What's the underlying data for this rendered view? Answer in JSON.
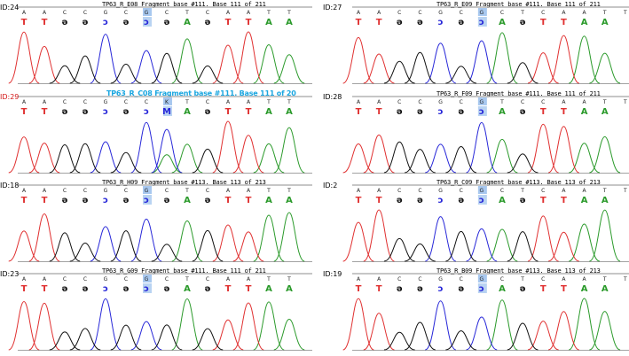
{
  "colors": {
    "A": "#2b9a2b",
    "T": "#e03030",
    "C": "#2727d8",
    "G": "#111111",
    "highlight": "#a8c8ef",
    "red_label": "#d41818",
    "blue_title": "#19a6e0"
  },
  "panels": [
    {
      "id": "ID:24",
      "id_color": "black",
      "title": "TP63_R_E08 Fragment base #111. Base 111 of 211",
      "title_style": "normal",
      "ref": [
        "A",
        "A",
        "C",
        "C",
        "G",
        "C",
        "G",
        "C",
        "T",
        "C",
        "A",
        "A",
        "T",
        "T"
      ],
      "calls": [
        "T",
        "T",
        "G",
        "G",
        "C",
        "G",
        "C",
        "G",
        "A",
        "G",
        "T",
        "T",
        "A",
        "A"
      ],
      "highlight": 6
    },
    {
      "id": "ID:27",
      "id_color": "black",
      "title": "TP63_R_E09 Fragment base #111. Base 111 of 211",
      "title_style": "normal",
      "ref": [
        "A",
        "A",
        "C",
        "C",
        "G",
        "C",
        "G",
        "C",
        "T",
        "C",
        "A",
        "A",
        "T",
        "T"
      ],
      "calls": [
        "T",
        "T",
        "G",
        "G",
        "C",
        "G",
        "C",
        "A",
        "G",
        "T",
        "T",
        "A",
        "A"
      ],
      "highlight": 6
    },
    {
      "id": "ID:29",
      "id_color": "red",
      "title": "TP63_R_C08 Fragment base #111. Base 111 of 20",
      "title_style": "blue",
      "ref": [
        "A",
        "A",
        "C",
        "C",
        "G",
        "C",
        "C",
        "K",
        "T",
        "C",
        "A",
        "A",
        "T",
        "T"
      ],
      "calls": [
        "T",
        "T",
        "G",
        "G",
        "C",
        "G",
        "C",
        "M",
        "A",
        "G",
        "T",
        "T",
        "A",
        "A"
      ],
      "highlight": 7
    },
    {
      "id": "ID:28",
      "id_color": "black",
      "title": "TP63_R_F09 Fragment base #111. Base 111 of 211",
      "title_style": "normal",
      "ref": [
        "A",
        "A",
        "C",
        "C",
        "G",
        "C",
        "G",
        "T",
        "C",
        "C",
        "A",
        "A",
        "T",
        "T"
      ],
      "calls": [
        "T",
        "T",
        "G",
        "G",
        "C",
        "G",
        "C",
        "A",
        "G",
        "T",
        "T",
        "A",
        "A"
      ],
      "highlight": 6
    },
    {
      "id": "ID:18",
      "id_color": "black",
      "title": "TP63_R_H09 Fragment base #113. Base 113 of 213",
      "title_style": "normal",
      "ref": [
        "A",
        "A",
        "C",
        "C",
        "G",
        "C",
        "G",
        "C",
        "T",
        "C",
        "A",
        "A",
        "T",
        "T"
      ],
      "calls": [
        "T",
        "T",
        "G",
        "G",
        "C",
        "G",
        "C",
        "G",
        "A",
        "G",
        "T",
        "T",
        "A",
        "A"
      ],
      "highlight": 6
    },
    {
      "id": "ID:2",
      "id_color": "black",
      "title": "TP63_R_C09 Fragment base #113. Base 113 of 213",
      "title_style": "normal",
      "ref": [
        "A",
        "A",
        "C",
        "C",
        "G",
        "C",
        "G",
        "C",
        "T",
        "C",
        "A",
        "A",
        "T",
        "T"
      ],
      "calls": [
        "T",
        "T",
        "G",
        "G",
        "C",
        "G",
        "C",
        "A",
        "G",
        "T",
        "T",
        "A",
        "A"
      ],
      "highlight": 6
    },
    {
      "id": "ID:23",
      "id_color": "black",
      "title": "TP63_R_G09 Fragment base #111. Base 111 of 211",
      "title_style": "normal",
      "ref": [
        "A",
        "A",
        "C",
        "C",
        "G",
        "C",
        "G",
        "C",
        "T",
        "C",
        "A",
        "A",
        "T",
        "T"
      ],
      "calls": [
        "T",
        "T",
        "G",
        "G",
        "C",
        "G",
        "C",
        "G",
        "A",
        "G",
        "T",
        "T",
        "A",
        "A"
      ],
      "highlight": 6
    },
    {
      "id": "ID:19",
      "id_color": "black",
      "title": "TP63_R_B09 Fragment base #113. Base 113 of 213",
      "title_style": "normal",
      "ref": [
        "A",
        "A",
        "C",
        "C",
        "G",
        "C",
        "G",
        "C",
        "T",
        "C",
        "A",
        "A",
        "T",
        "T"
      ],
      "calls": [
        "T",
        "T",
        "G",
        "G",
        "C",
        "G",
        "C",
        "A",
        "G",
        "T",
        "T",
        "A",
        "A"
      ],
      "highlight": 6
    }
  ]
}
